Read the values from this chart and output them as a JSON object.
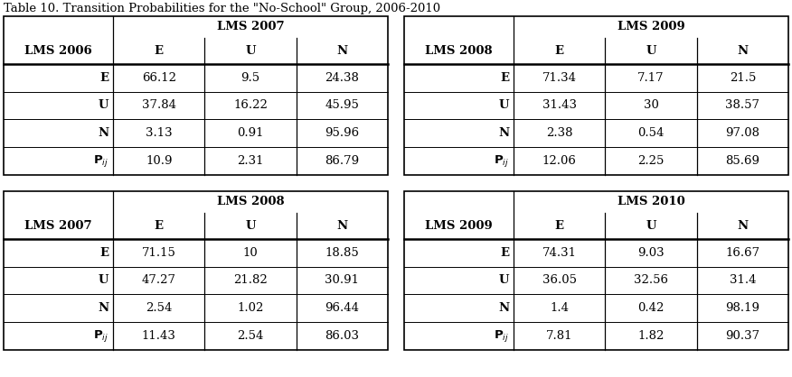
{
  "title": "Table 10. Transition Probabilities for the \"No-School\" Group, 2006-2010",
  "tables": [
    {
      "row_header": "LMS 2006",
      "col_header": "LMS 2007",
      "col_labels": [
        "E",
        "U",
        "N"
      ],
      "row_labels": [
        "E",
        "U",
        "N",
        "P_ij"
      ],
      "values": [
        [
          "66.12",
          "9.5",
          "24.38"
        ],
        [
          "37.84",
          "16.22",
          "45.95"
        ],
        [
          "3.13",
          "0.91",
          "95.96"
        ],
        [
          "10.9",
          "2.31",
          "86.79"
        ]
      ]
    },
    {
      "row_header": "LMS 2008",
      "col_header": "LMS 2009",
      "col_labels": [
        "E",
        "U",
        "N"
      ],
      "row_labels": [
        "E",
        "U",
        "N",
        "P_ij"
      ],
      "values": [
        [
          "71.34",
          "7.17",
          "21.5"
        ],
        [
          "31.43",
          "30",
          "38.57"
        ],
        [
          "2.38",
          "0.54",
          "97.08"
        ],
        [
          "12.06",
          "2.25",
          "85.69"
        ]
      ]
    },
    {
      "row_header": "LMS 2007",
      "col_header": "LMS 2008",
      "col_labels": [
        "E",
        "U",
        "N"
      ],
      "row_labels": [
        "E",
        "U",
        "N",
        "P_ij"
      ],
      "values": [
        [
          "71.15",
          "10",
          "18.85"
        ],
        [
          "47.27",
          "21.82",
          "30.91"
        ],
        [
          "2.54",
          "1.02",
          "96.44"
        ],
        [
          "11.43",
          "2.54",
          "86.03"
        ]
      ]
    },
    {
      "row_header": "LMS 2009",
      "col_header": "LMS 2010",
      "col_labels": [
        "E",
        "U",
        "N"
      ],
      "row_labels": [
        "E",
        "U",
        "N",
        "P_ij"
      ],
      "values": [
        [
          "74.31",
          "9.03",
          "16.67"
        ],
        [
          "36.05",
          "32.56",
          "31.4"
        ],
        [
          "1.4",
          "0.42",
          "98.19"
        ],
        [
          "7.81",
          "1.82",
          "90.37"
        ]
      ]
    }
  ],
  "bg_color": "#ffffff",
  "text_color": "#000000",
  "line_color": "#000000",
  "title_fontsize": 9.5,
  "cell_fontsize": 9.5,
  "fig_width": 8.76,
  "fig_height": 4.18,
  "dpi": 100
}
